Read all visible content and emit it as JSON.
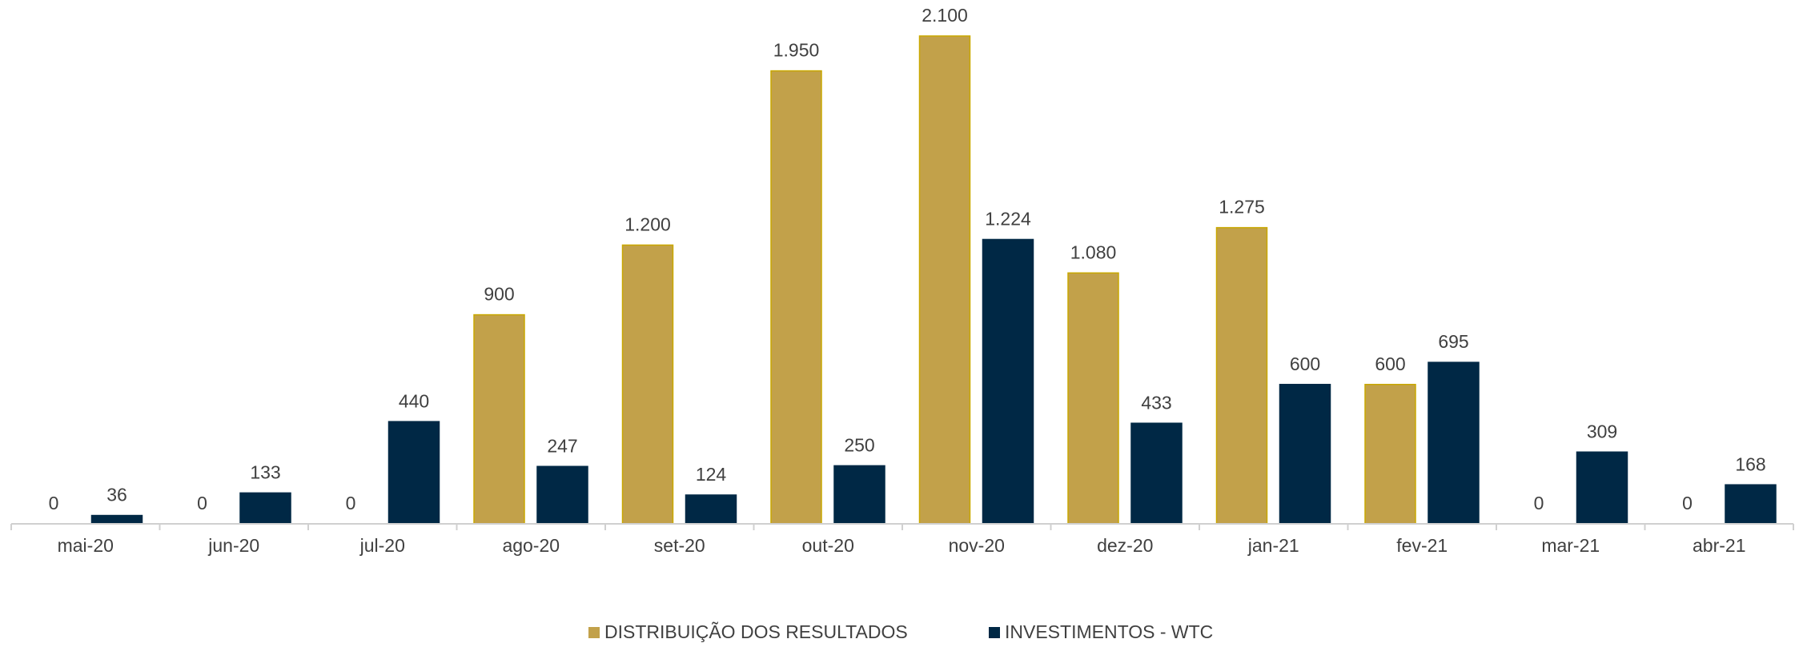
{
  "chart_data": {
    "type": "bar",
    "categories": [
      "mai-20",
      "jun-20",
      "jul-20",
      "ago-20",
      "set-20",
      "out-20",
      "nov-20",
      "dez-20",
      "jan-21",
      "fev-21",
      "mar-21",
      "abr-21"
    ],
    "series": [
      {
        "name": "DISTRIBUIÇÃO DOS RESULTADOS",
        "color": "#c2a14a",
        "values": [
          0,
          0,
          0,
          900,
          1200,
          1950,
          2100,
          1080,
          1275,
          600,
          0,
          0
        ],
        "value_labels": [
          "0",
          "0",
          "0",
          "900",
          "1.200",
          "1.950",
          "2.100",
          "1.080",
          "1.275",
          "600",
          "0",
          "0"
        ]
      },
      {
        "name": "INVESTIMENTOS - WTC",
        "color": "#002845",
        "values": [
          36,
          133,
          440,
          247,
          124,
          250,
          1224,
          433,
          600,
          695,
          309,
          168
        ],
        "value_labels": [
          "36",
          "133",
          "440",
          "247",
          "124",
          "250",
          "1.224",
          "433",
          "600",
          "695",
          "309",
          "168"
        ]
      }
    ],
    "legend": "bottom"
  }
}
